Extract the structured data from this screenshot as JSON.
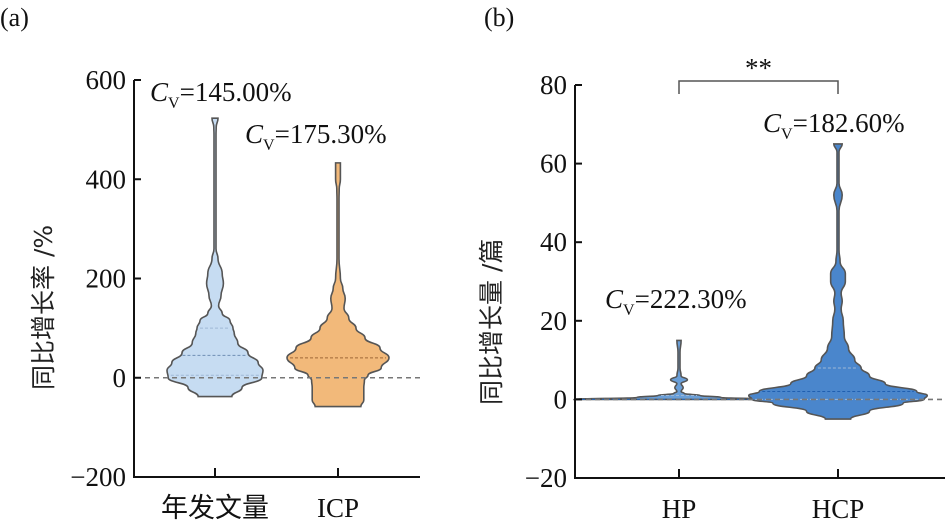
{
  "chart_data": [
    {
      "panel": "(a)",
      "type": "violin",
      "title": "",
      "xlabel": "",
      "ylabel": "同比增长率 /%",
      "ylim": [
        -200,
        600
      ],
      "yticks": [
        -200,
        0,
        200,
        400,
        600
      ],
      "ytick_labels": [
        "−200",
        "0",
        "200",
        "400",
        "600"
      ],
      "categories": [
        "年发文量",
        "ICP"
      ],
      "reference_line": 0,
      "series": [
        {
          "name": "年发文量",
          "color": "#c6dcf2",
          "min": -38,
          "max": 523,
          "quartiles": [
            5,
            45,
            100
          ],
          "cv_annotation": "145.00%",
          "density_profile": [
            [
              -38,
              0.28
            ],
            [
              -20,
              0.45
            ],
            [
              0,
              0.78
            ],
            [
              15,
              0.8
            ],
            [
              30,
              0.72
            ],
            [
              50,
              0.55
            ],
            [
              70,
              0.38
            ],
            [
              90,
              0.32
            ],
            [
              100,
              0.3
            ],
            [
              115,
              0.25
            ],
            [
              130,
              0.12
            ],
            [
              145,
              0.06
            ],
            [
              165,
              0.1
            ],
            [
              190,
              0.14
            ],
            [
              210,
              0.12
            ],
            [
              240,
              0.05
            ],
            [
              260,
              0.008
            ],
            [
              300,
              0.006
            ],
            [
              400,
              0.006
            ],
            [
              490,
              0.006
            ],
            [
              505,
              0.02
            ],
            [
              523,
              0.05
            ]
          ]
        },
        {
          "name": "ICP",
          "color": "#f2b97a",
          "min": -58,
          "max": 433,
          "quartiles": [
            40,
            40,
            40
          ],
          "cv_annotation": "175.30%",
          "density_profile": [
            [
              -58,
              0.38
            ],
            [
              -45,
              0.43
            ],
            [
              -20,
              0.43
            ],
            [
              -5,
              0.44
            ],
            [
              5,
              0.5
            ],
            [
              20,
              0.72
            ],
            [
              40,
              0.85
            ],
            [
              60,
              0.7
            ],
            [
              80,
              0.45
            ],
            [
              100,
              0.3
            ],
            [
              120,
              0.18
            ],
            [
              140,
              0.1
            ],
            [
              160,
              0.12
            ],
            [
              180,
              0.08
            ],
            [
              200,
              0.04
            ],
            [
              240,
              0.008
            ],
            [
              300,
              0.006
            ],
            [
              360,
              0.006
            ],
            [
              380,
              0.02
            ],
            [
              400,
              0.04
            ],
            [
              433,
              0.04
            ]
          ]
        }
      ]
    },
    {
      "panel": "(b)",
      "type": "violin",
      "title": "",
      "xlabel": "",
      "ylabel": "同比增长量 /篇",
      "ylim": [
        -20,
        80
      ],
      "yticks": [
        -20,
        0,
        20,
        40,
        60,
        80
      ],
      "ytick_labels": [
        "−20",
        "0",
        "20",
        "40",
        "60",
        "80"
      ],
      "categories": [
        "HP",
        "HCP"
      ],
      "reference_line": 0,
      "significance": {
        "between": [
          "HP",
          "HCP"
        ],
        "label": "**"
      },
      "series": [
        {
          "name": "HP",
          "color": "#6a9fd8",
          "min": 0,
          "max": 15,
          "quartiles": [
            0,
            0,
            1
          ],
          "cv_annotation": "222.30%",
          "density_profile": [
            [
              0,
              1.0
            ],
            [
              0.5,
              0.4
            ],
            [
              1,
              0.2
            ],
            [
              1.5,
              0.05
            ],
            [
              2,
              0.02
            ],
            [
              3,
              0.04
            ],
            [
              4,
              0.02
            ],
            [
              5,
              0.08
            ],
            [
              6,
              0.02
            ],
            [
              8,
              0.008
            ],
            [
              12,
              0.008
            ],
            [
              15,
              0.02
            ]
          ]
        },
        {
          "name": "HCP",
          "color": "#4a86cc",
          "min": -5,
          "max": 65,
          "quartiles": [
            0,
            2,
            8
          ],
          "cv_annotation": "182.60%",
          "density_profile": [
            [
              -5,
              0.12
            ],
            [
              -3,
              0.3
            ],
            [
              -1,
              0.62
            ],
            [
              0,
              0.82
            ],
            [
              1,
              0.85
            ],
            [
              2,
              0.75
            ],
            [
              4,
              0.45
            ],
            [
              6,
              0.3
            ],
            [
              8,
              0.22
            ],
            [
              10,
              0.16
            ],
            [
              13,
              0.1
            ],
            [
              16,
              0.06
            ],
            [
              20,
              0.05
            ],
            [
              23,
              0.03
            ],
            [
              25,
              0.04
            ],
            [
              27,
              0.03
            ],
            [
              30,
              0.07
            ],
            [
              32,
              0.07
            ],
            [
              35,
              0.02
            ],
            [
              38,
              0.006
            ],
            [
              48,
              0.006
            ],
            [
              52,
              0.04
            ],
            [
              55,
              0.006
            ],
            [
              63,
              0.006
            ],
            [
              65,
              0.04
            ]
          ]
        }
      ]
    }
  ]
}
